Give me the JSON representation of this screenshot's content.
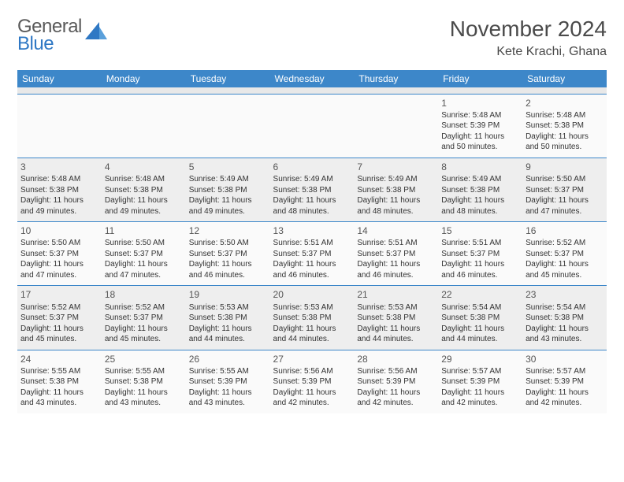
{
  "logo": {
    "top": "General",
    "bottom": "Blue",
    "triangle_color": "#2f78c4"
  },
  "title": {
    "main": "November 2024",
    "sub": "Kete Krachi, Ghana"
  },
  "theme": {
    "header_bg": "#3d87c9",
    "header_fg": "#ffffff",
    "rule": "#3d87c9",
    "shade": "#eeeeee",
    "sub_bg": "#e8e8e8",
    "page_bg": "#ffffff",
    "text": "#333333",
    "title_fontsize": 28,
    "sub_fontsize": 16,
    "cell_fontsize": 10,
    "daynum_fontsize": 12
  },
  "columns": [
    "Sunday",
    "Monday",
    "Tuesday",
    "Wednesday",
    "Thursday",
    "Friday",
    "Saturday"
  ],
  "weeks": [
    [
      null,
      null,
      null,
      null,
      null,
      {
        "n": "1",
        "sr": "Sunrise: 5:48 AM",
        "ss": "Sunset: 5:39 PM",
        "d1": "Daylight: 11 hours",
        "d2": "and 50 minutes."
      },
      {
        "n": "2",
        "sr": "Sunrise: 5:48 AM",
        "ss": "Sunset: 5:38 PM",
        "d1": "Daylight: 11 hours",
        "d2": "and 50 minutes."
      }
    ],
    [
      {
        "n": "3",
        "sr": "Sunrise: 5:48 AM",
        "ss": "Sunset: 5:38 PM",
        "d1": "Daylight: 11 hours",
        "d2": "and 49 minutes."
      },
      {
        "n": "4",
        "sr": "Sunrise: 5:48 AM",
        "ss": "Sunset: 5:38 PM",
        "d1": "Daylight: 11 hours",
        "d2": "and 49 minutes."
      },
      {
        "n": "5",
        "sr": "Sunrise: 5:49 AM",
        "ss": "Sunset: 5:38 PM",
        "d1": "Daylight: 11 hours",
        "d2": "and 49 minutes."
      },
      {
        "n": "6",
        "sr": "Sunrise: 5:49 AM",
        "ss": "Sunset: 5:38 PM",
        "d1": "Daylight: 11 hours",
        "d2": "and 48 minutes."
      },
      {
        "n": "7",
        "sr": "Sunrise: 5:49 AM",
        "ss": "Sunset: 5:38 PM",
        "d1": "Daylight: 11 hours",
        "d2": "and 48 minutes."
      },
      {
        "n": "8",
        "sr": "Sunrise: 5:49 AM",
        "ss": "Sunset: 5:38 PM",
        "d1": "Daylight: 11 hours",
        "d2": "and 48 minutes."
      },
      {
        "n": "9",
        "sr": "Sunrise: 5:50 AM",
        "ss": "Sunset: 5:37 PM",
        "d1": "Daylight: 11 hours",
        "d2": "and 47 minutes."
      }
    ],
    [
      {
        "n": "10",
        "sr": "Sunrise: 5:50 AM",
        "ss": "Sunset: 5:37 PM",
        "d1": "Daylight: 11 hours",
        "d2": "and 47 minutes."
      },
      {
        "n": "11",
        "sr": "Sunrise: 5:50 AM",
        "ss": "Sunset: 5:37 PM",
        "d1": "Daylight: 11 hours",
        "d2": "and 47 minutes."
      },
      {
        "n": "12",
        "sr": "Sunrise: 5:50 AM",
        "ss": "Sunset: 5:37 PM",
        "d1": "Daylight: 11 hours",
        "d2": "and 46 minutes."
      },
      {
        "n": "13",
        "sr": "Sunrise: 5:51 AM",
        "ss": "Sunset: 5:37 PM",
        "d1": "Daylight: 11 hours",
        "d2": "and 46 minutes."
      },
      {
        "n": "14",
        "sr": "Sunrise: 5:51 AM",
        "ss": "Sunset: 5:37 PM",
        "d1": "Daylight: 11 hours",
        "d2": "and 46 minutes."
      },
      {
        "n": "15",
        "sr": "Sunrise: 5:51 AM",
        "ss": "Sunset: 5:37 PM",
        "d1": "Daylight: 11 hours",
        "d2": "and 46 minutes."
      },
      {
        "n": "16",
        "sr": "Sunrise: 5:52 AM",
        "ss": "Sunset: 5:37 PM",
        "d1": "Daylight: 11 hours",
        "d2": "and 45 minutes."
      }
    ],
    [
      {
        "n": "17",
        "sr": "Sunrise: 5:52 AM",
        "ss": "Sunset: 5:37 PM",
        "d1": "Daylight: 11 hours",
        "d2": "and 45 minutes."
      },
      {
        "n": "18",
        "sr": "Sunrise: 5:52 AM",
        "ss": "Sunset: 5:37 PM",
        "d1": "Daylight: 11 hours",
        "d2": "and 45 minutes."
      },
      {
        "n": "19",
        "sr": "Sunrise: 5:53 AM",
        "ss": "Sunset: 5:38 PM",
        "d1": "Daylight: 11 hours",
        "d2": "and 44 minutes."
      },
      {
        "n": "20",
        "sr": "Sunrise: 5:53 AM",
        "ss": "Sunset: 5:38 PM",
        "d1": "Daylight: 11 hours",
        "d2": "and 44 minutes."
      },
      {
        "n": "21",
        "sr": "Sunrise: 5:53 AM",
        "ss": "Sunset: 5:38 PM",
        "d1": "Daylight: 11 hours",
        "d2": "and 44 minutes."
      },
      {
        "n": "22",
        "sr": "Sunrise: 5:54 AM",
        "ss": "Sunset: 5:38 PM",
        "d1": "Daylight: 11 hours",
        "d2": "and 44 minutes."
      },
      {
        "n": "23",
        "sr": "Sunrise: 5:54 AM",
        "ss": "Sunset: 5:38 PM",
        "d1": "Daylight: 11 hours",
        "d2": "and 43 minutes."
      }
    ],
    [
      {
        "n": "24",
        "sr": "Sunrise: 5:55 AM",
        "ss": "Sunset: 5:38 PM",
        "d1": "Daylight: 11 hours",
        "d2": "and 43 minutes."
      },
      {
        "n": "25",
        "sr": "Sunrise: 5:55 AM",
        "ss": "Sunset: 5:38 PM",
        "d1": "Daylight: 11 hours",
        "d2": "and 43 minutes."
      },
      {
        "n": "26",
        "sr": "Sunrise: 5:55 AM",
        "ss": "Sunset: 5:39 PM",
        "d1": "Daylight: 11 hours",
        "d2": "and 43 minutes."
      },
      {
        "n": "27",
        "sr": "Sunrise: 5:56 AM",
        "ss": "Sunset: 5:39 PM",
        "d1": "Daylight: 11 hours",
        "d2": "and 42 minutes."
      },
      {
        "n": "28",
        "sr": "Sunrise: 5:56 AM",
        "ss": "Sunset: 5:39 PM",
        "d1": "Daylight: 11 hours",
        "d2": "and 42 minutes."
      },
      {
        "n": "29",
        "sr": "Sunrise: 5:57 AM",
        "ss": "Sunset: 5:39 PM",
        "d1": "Daylight: 11 hours",
        "d2": "and 42 minutes."
      },
      {
        "n": "30",
        "sr": "Sunrise: 5:57 AM",
        "ss": "Sunset: 5:39 PM",
        "d1": "Daylight: 11 hours",
        "d2": "and 42 minutes."
      }
    ]
  ]
}
